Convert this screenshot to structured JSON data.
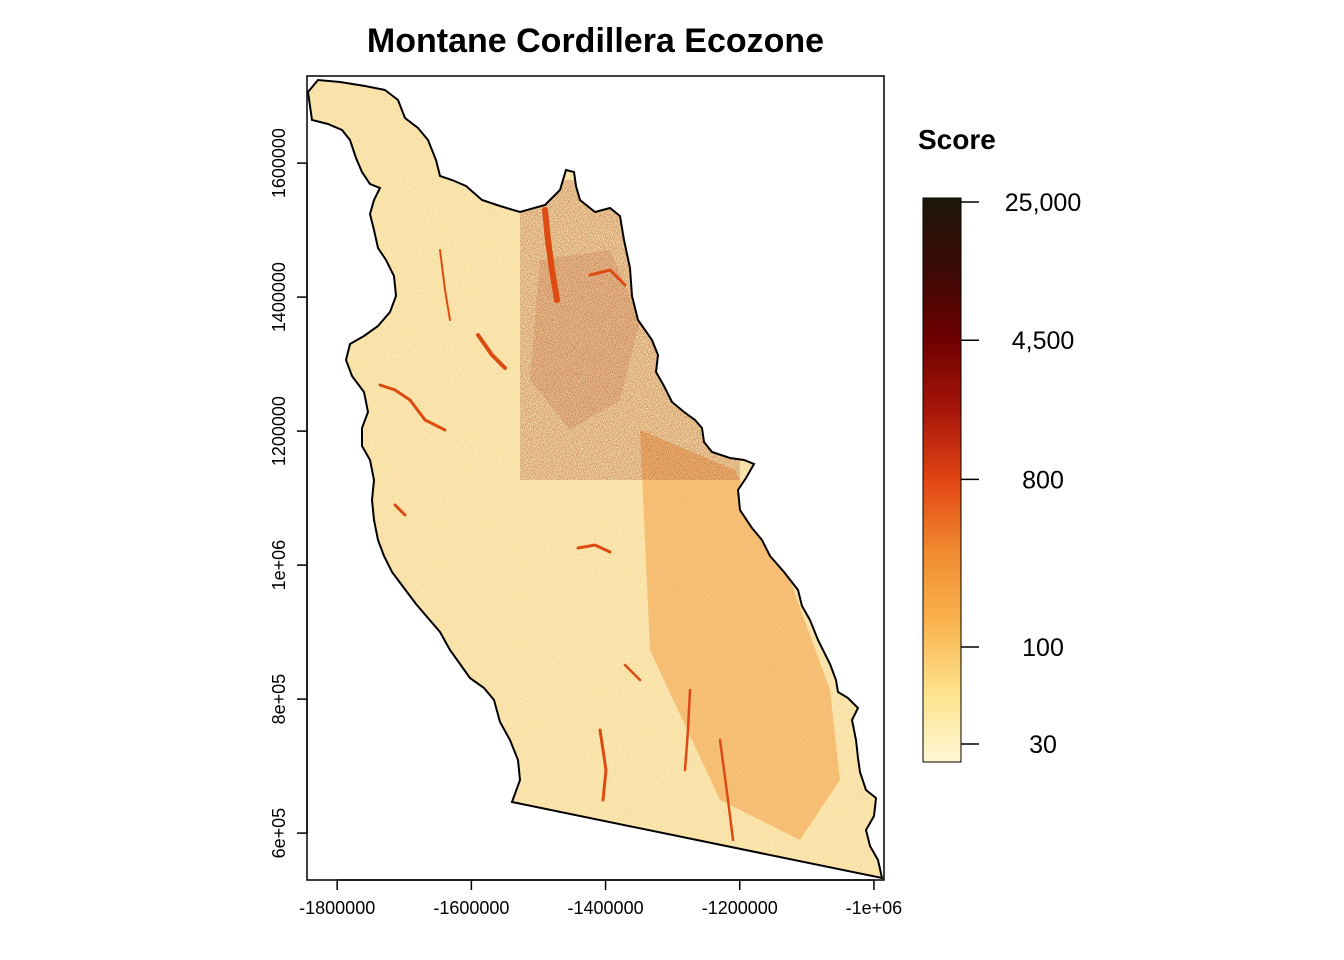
{
  "map": {
    "title": "Montane Cordillera Ecozone",
    "x_axis": {
      "ticks": [
        {
          "value": -1800000,
          "label": "-1800000"
        },
        {
          "value": -1600000,
          "label": "-1600000"
        },
        {
          "value": -1400000,
          "label": "-1400000"
        },
        {
          "value": -1200000,
          "label": "-1200000"
        },
        {
          "value": -1000000,
          "label": "-1e+06"
        }
      ],
      "range": [
        -1845000,
        -985000
      ]
    },
    "y_axis": {
      "ticks": [
        {
          "value": 600000,
          "label": "6e+05"
        },
        {
          "value": 800000,
          "label": "8e+05"
        },
        {
          "value": 1000000,
          "label": "1e+06"
        },
        {
          "value": 1200000,
          "label": "1200000"
        },
        {
          "value": 1400000,
          "label": "1400000"
        },
        {
          "value": 1600000,
          "label": "1600000"
        }
      ],
      "range": [
        530000,
        1730000
      ]
    },
    "legend": {
      "title": "Score",
      "scale": "log",
      "range": [
        30,
        25000
      ],
      "ticks": [
        {
          "value": 25000,
          "label": "25,000"
        },
        {
          "value": 4500,
          "label": "4,500"
        },
        {
          "value": 800,
          "label": "800"
        },
        {
          "value": 100,
          "label": "100"
        },
        {
          "value": 30,
          "label": "30"
        }
      ],
      "colors": [
        "#fff7d4",
        "#fde28a",
        "#f9b24e",
        "#f08a30",
        "#e24512",
        "#a6150a",
        "#6e0000",
        "#3a0a05",
        "#1d170a"
      ]
    }
  }
}
